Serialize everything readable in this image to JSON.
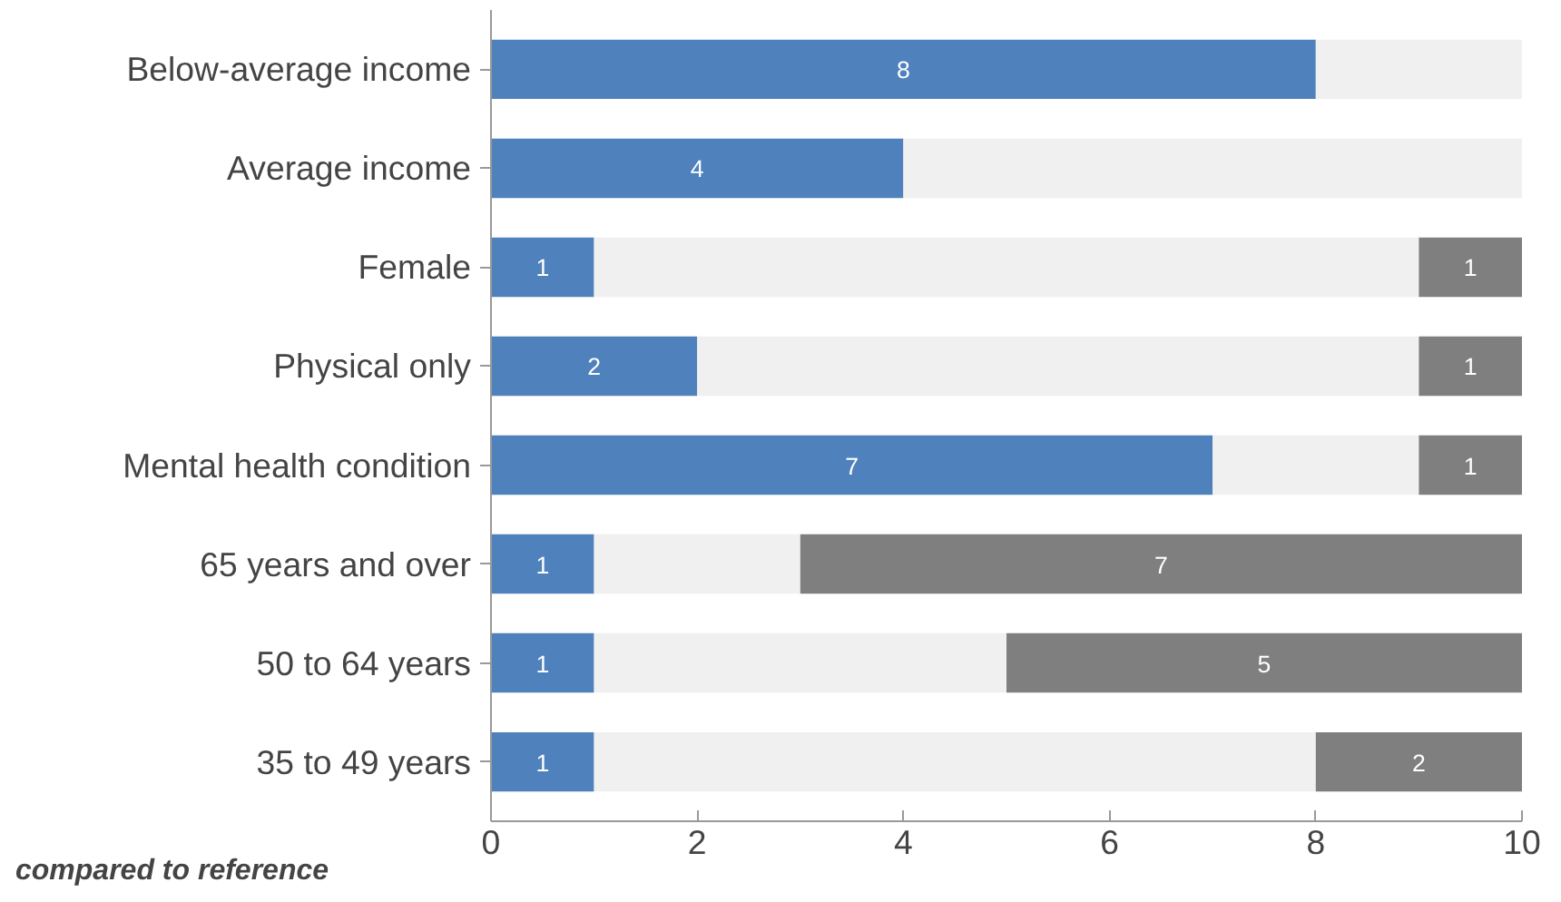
{
  "chart_data": {
    "type": "bar",
    "orientation": "horizontal",
    "stacked": true,
    "categories": [
      "Below-average income",
      "Average income",
      "Female",
      "Physical only",
      "Mental health condition",
      "65 years and over",
      "50 to 64 years",
      "35 to 49 years"
    ],
    "series": [
      {
        "color": "#4f81bd",
        "values": [
          8,
          4,
          1,
          2,
          7,
          1,
          1,
          1
        ],
        "value_labels": [
          "8",
          "4",
          "1",
          "2",
          "7",
          "1",
          "1",
          "1"
        ]
      },
      {
        "color": "#f0f0f0",
        "values": [
          2,
          6,
          8,
          7,
          2,
          2,
          4,
          7
        ]
      },
      {
        "color": "#7f7f7f",
        "values": [
          0,
          0,
          1,
          1,
          1,
          7,
          5,
          2
        ],
        "value_labels": [
          null,
          null,
          "1",
          "1",
          "1",
          "7",
          "5",
          "2"
        ]
      }
    ],
    "xlim": [
      0,
      10
    ],
    "xticks": [
      0,
      2,
      4,
      6,
      8,
      10
    ],
    "grid": false,
    "annotations": [
      "compared to reference"
    ]
  }
}
